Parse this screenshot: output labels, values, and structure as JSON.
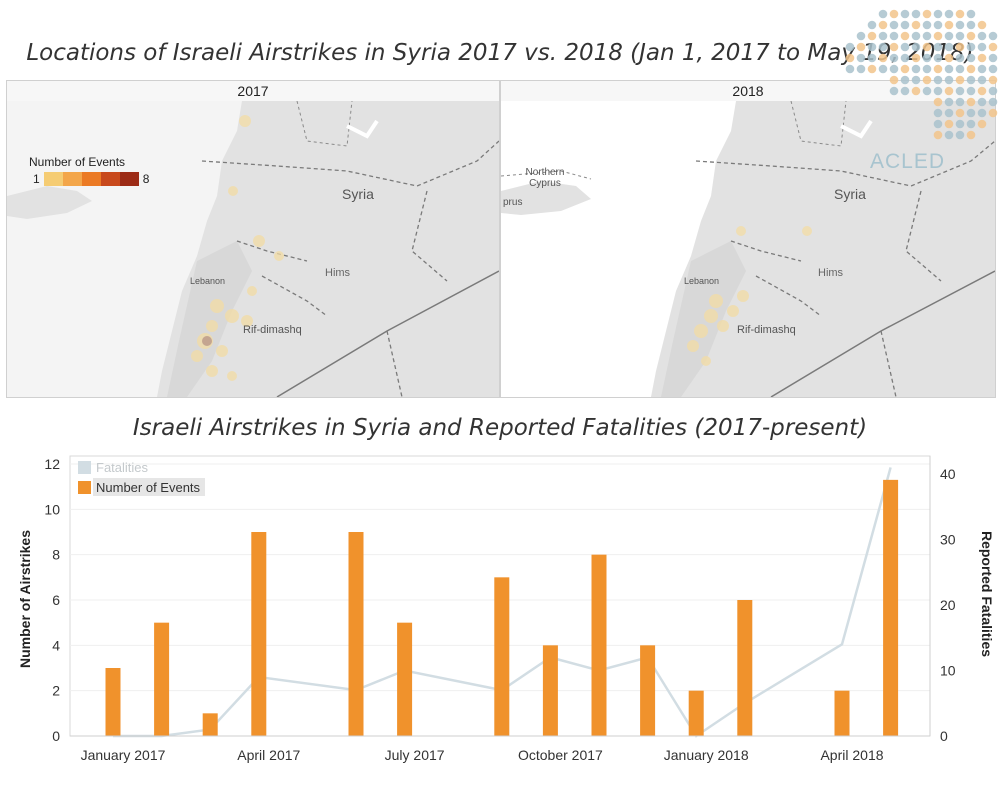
{
  "map_section": {
    "title": "Locations of Israeli Airstrikes in Syria 2017 vs. 2018 (Jan 1, 2017 to May 19, 2018)",
    "panels": [
      {
        "year": "2017",
        "labels": {
          "syria": "Syria",
          "hims": "Hims",
          "lebanon": "Lebanon",
          "rif_dimashq": "Rif-dimashq"
        }
      },
      {
        "year": "2018",
        "labels": {
          "syria": "Syria",
          "hims": "Hims",
          "lebanon": "Lebanon",
          "rif_dimashq": "Rif-dimashq",
          "northern_cyprus": "Northern Cyprus",
          "cyprus": "prus"
        }
      }
    ],
    "legend": {
      "title": "Number of Events",
      "min": "1",
      "max": "8",
      "colors": [
        "#f5cc73",
        "#f3a64a",
        "#eb7a24",
        "#c8491c",
        "#9c2b16"
      ]
    },
    "logo": {
      "text": "ACLED",
      "dot_colors": [
        "#a9c2cc",
        "#f2c48b"
      ]
    }
  },
  "chart_data": {
    "type": "bar",
    "title": "Israeli Airstrikes in Syria and Reported Fatalities (2017-present)",
    "xlabel": "",
    "ylabel": "Number of Airstrikes",
    "y2label": "Reported Fatalities",
    "x_ticks": [
      "January 2017",
      "April 2017",
      "July 2017",
      "October 2017",
      "January 2018",
      "April 2018"
    ],
    "x_tick_month_index": [
      0,
      3,
      6,
      9,
      12,
      15
    ],
    "y_ticks": [
      0,
      2,
      4,
      6,
      8,
      10,
      12
    ],
    "y2_ticks": [
      0,
      10,
      20,
      30,
      40
    ],
    "ylim": [
      0,
      12
    ],
    "y2lim": [
      0,
      40
    ],
    "bar_color": "#f0922c",
    "line_color": "#d2dde3",
    "legend": {
      "placement": "top-left",
      "entries": [
        "Fatalities",
        "Number of Events"
      ]
    },
    "series": [
      {
        "name": "Number of Events",
        "type": "bar",
        "axis": "left",
        "points": [
          {
            "month": 0,
            "value": 3
          },
          {
            "month": 1,
            "value": 5
          },
          {
            "month": 2,
            "value": 1
          },
          {
            "month": 3,
            "value": 9
          },
          {
            "month": 5,
            "value": 9
          },
          {
            "month": 6,
            "value": 5
          },
          {
            "month": 8,
            "value": 7
          },
          {
            "month": 9,
            "value": 4
          },
          {
            "month": 10,
            "value": 8
          },
          {
            "month": 11,
            "value": 4
          },
          {
            "month": 12,
            "value": 2
          },
          {
            "month": 13,
            "value": 6
          },
          {
            "month": 15,
            "value": 2
          },
          {
            "month": 16,
            "value": 11.3
          }
        ]
      },
      {
        "name": "Fatalities",
        "type": "line",
        "axis": "right",
        "points": [
          {
            "month": 0,
            "value": 0
          },
          {
            "month": 1,
            "value": 0
          },
          {
            "month": 2,
            "value": 1
          },
          {
            "month": 3,
            "value": 9
          },
          {
            "month": 5,
            "value": 7
          },
          {
            "month": 6,
            "value": 10
          },
          {
            "month": 8,
            "value": 7
          },
          {
            "month": 9,
            "value": 12
          },
          {
            "month": 10,
            "value": 10
          },
          {
            "month": 11,
            "value": 12
          },
          {
            "month": 12,
            "value": 0
          },
          {
            "month": 13,
            "value": 5
          },
          {
            "month": 15,
            "value": 14
          },
          {
            "month": 16,
            "value": 41
          }
        ]
      }
    ]
  }
}
